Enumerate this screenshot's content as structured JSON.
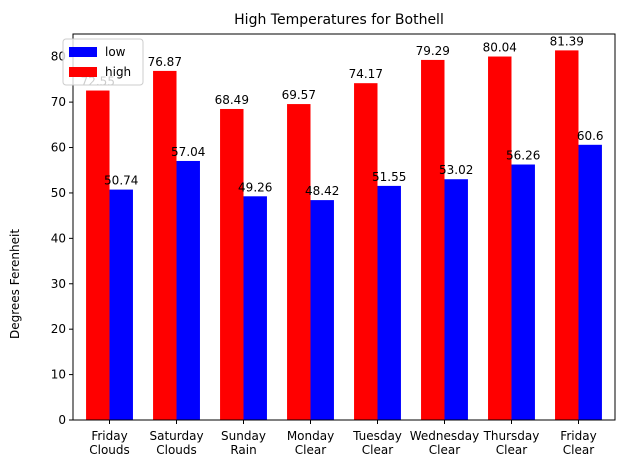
{
  "chart_data": {
    "type": "bar",
    "title": "High Temperatures for Bothell",
    "xlabel": "",
    "ylabel": "Degrees Ferenheit",
    "ylim": [
      0,
      85
    ],
    "yticks": [
      0,
      10,
      20,
      30,
      40,
      50,
      60,
      70,
      80
    ],
    "grid": false,
    "legend_position": "top-left",
    "categories": [
      [
        "Friday",
        "Clouds"
      ],
      [
        "Saturday",
        "Clouds"
      ],
      [
        "Sunday",
        "Rain"
      ],
      [
        "Monday",
        "Clear"
      ],
      [
        "Tuesday",
        "Clear"
      ],
      [
        "Wednesday",
        "Clear"
      ],
      [
        "Thursday",
        "Clear"
      ],
      [
        "Friday",
        "Clear"
      ]
    ],
    "series": [
      {
        "name": "high",
        "color": "#ff0000",
        "values": [
          72.55,
          76.87,
          68.49,
          69.57,
          74.17,
          79.29,
          80.04,
          81.39
        ]
      },
      {
        "name": "low",
        "color": "#0000ff",
        "values": [
          50.74,
          57.04,
          49.26,
          48.42,
          51.55,
          53.02,
          56.26,
          60.6
        ]
      }
    ],
    "legend_order": [
      "low",
      "high"
    ]
  }
}
